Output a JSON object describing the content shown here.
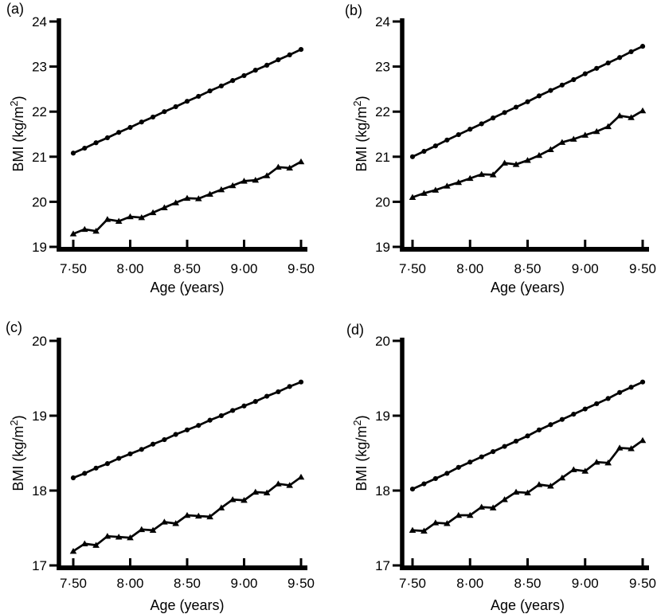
{
  "figure": {
    "x_axis_label": "Age (years)",
    "y_axis_label": "BMI (kg/m²)",
    "line_color": "#000000",
    "background_color": "#ffffff"
  },
  "chart_data": [
    {
      "type": "line",
      "panel_label": "(a)",
      "xlabel": "Age (years)",
      "ylabel": "BMI (kg/m²)",
      "xlim": [
        7.5,
        9.5
      ],
      "ylim": [
        19,
        24
      ],
      "yticks": [
        19,
        20,
        21,
        22,
        23,
        24
      ],
      "ytick_labels": [
        "19",
        "20",
        "21",
        "22",
        "23",
        "24"
      ],
      "xticks": [
        7.5,
        8.0,
        8.5,
        9.0,
        9.5
      ],
      "xtick_labels": [
        "7·50",
        "8·00",
        "8·50",
        "9·00",
        "9·50"
      ],
      "x": [
        7.5,
        7.6,
        7.7,
        7.8,
        7.9,
        8.0,
        8.1,
        8.2,
        8.3,
        8.4,
        8.5,
        8.6,
        8.7,
        8.8,
        8.9,
        9.0,
        9.1,
        9.2,
        9.3,
        9.4,
        9.5
      ],
      "series": [
        {
          "name": "upper-circles",
          "marker": "circle",
          "values": [
            21.08,
            21.19,
            21.31,
            21.42,
            21.54,
            21.65,
            21.77,
            21.88,
            22.0,
            22.11,
            22.23,
            22.34,
            22.46,
            22.57,
            22.69,
            22.8,
            22.92,
            23.03,
            23.15,
            23.26,
            23.38
          ]
        },
        {
          "name": "lower-triangles",
          "marker": "triangle",
          "values": [
            19.29,
            19.39,
            19.35,
            19.61,
            19.57,
            19.67,
            19.65,
            19.76,
            19.87,
            19.98,
            20.08,
            20.07,
            20.17,
            20.27,
            20.36,
            20.46,
            20.48,
            20.58,
            20.77,
            20.75,
            20.89
          ]
        }
      ]
    },
    {
      "type": "line",
      "panel_label": "(b)",
      "xlabel": "Age (years)",
      "ylabel": "BMI (kg/m²)",
      "xlim": [
        7.5,
        9.5
      ],
      "ylim": [
        19,
        24
      ],
      "yticks": [
        19,
        20,
        21,
        22,
        23,
        24
      ],
      "ytick_labels": [
        "19",
        "20",
        "21",
        "22",
        "23",
        "24"
      ],
      "xticks": [
        7.5,
        8.0,
        8.5,
        9.0,
        9.5
      ],
      "xtick_labels": [
        "7·50",
        "8·00",
        "8·50",
        "9·00",
        "9·50"
      ],
      "x": [
        7.5,
        7.6,
        7.7,
        7.8,
        7.9,
        8.0,
        8.1,
        8.2,
        8.3,
        8.4,
        8.5,
        8.6,
        8.7,
        8.8,
        8.9,
        9.0,
        9.1,
        9.2,
        9.3,
        9.4,
        9.5
      ],
      "series": [
        {
          "name": "upper-circles",
          "marker": "circle",
          "values": [
            21.0,
            21.12,
            21.24,
            21.37,
            21.49,
            21.61,
            21.73,
            21.86,
            21.98,
            22.1,
            22.22,
            22.35,
            22.47,
            22.59,
            22.71,
            22.84,
            22.96,
            23.08,
            23.2,
            23.33,
            23.45
          ]
        },
        {
          "name": "lower-triangles",
          "marker": "triangle",
          "values": [
            20.1,
            20.19,
            20.26,
            20.35,
            20.43,
            20.52,
            20.61,
            20.6,
            20.86,
            20.83,
            20.92,
            21.03,
            21.16,
            21.32,
            21.39,
            21.48,
            21.56,
            21.67,
            21.91,
            21.87,
            22.02
          ]
        }
      ]
    },
    {
      "type": "line",
      "panel_label": "(c)",
      "xlabel": "Age (years)",
      "ylabel": "BMI (kg/m²)",
      "xlim": [
        7.5,
        9.5
      ],
      "ylim": [
        17,
        20
      ],
      "yticks": [
        17,
        18,
        19,
        20
      ],
      "ytick_labels": [
        "17",
        "18",
        "19",
        "20"
      ],
      "xticks": [
        7.5,
        8.0,
        8.5,
        9.0,
        9.5
      ],
      "xtick_labels": [
        "7·50",
        "8·00",
        "8·50",
        "9·00",
        "9·50"
      ],
      "x": [
        7.5,
        7.6,
        7.7,
        7.8,
        7.9,
        8.0,
        8.1,
        8.2,
        8.3,
        8.4,
        8.5,
        8.6,
        8.7,
        8.8,
        8.9,
        9.0,
        9.1,
        9.2,
        9.3,
        9.4,
        9.5
      ],
      "series": [
        {
          "name": "upper-circles",
          "marker": "circle",
          "values": [
            18.17,
            18.23,
            18.3,
            18.36,
            18.43,
            18.49,
            18.55,
            18.62,
            18.68,
            18.75,
            18.81,
            18.87,
            18.94,
            19.0,
            19.07,
            19.13,
            19.19,
            19.26,
            19.32,
            19.39,
            19.45
          ]
        },
        {
          "name": "lower-triangles",
          "marker": "triangle",
          "values": [
            17.19,
            17.29,
            17.27,
            17.39,
            17.38,
            17.37,
            17.48,
            17.47,
            17.58,
            17.56,
            17.67,
            17.66,
            17.65,
            17.77,
            17.88,
            17.87,
            17.98,
            17.97,
            18.09,
            18.07,
            18.18
          ]
        }
      ]
    },
    {
      "type": "line",
      "panel_label": "(d)",
      "xlabel": "Age (years)",
      "ylabel": "BMI (kg/m²)",
      "xlim": [
        7.5,
        9.5
      ],
      "ylim": [
        17,
        20
      ],
      "yticks": [
        17,
        18,
        19,
        20
      ],
      "ytick_labels": [
        "17",
        "18",
        "19",
        "20"
      ],
      "xticks": [
        7.5,
        8.0,
        8.5,
        9.0,
        9.5
      ],
      "xtick_labels": [
        "7·50",
        "8·00",
        "8·50",
        "9·00",
        "9·50"
      ],
      "x": [
        7.5,
        7.6,
        7.7,
        7.8,
        7.9,
        8.0,
        8.1,
        8.2,
        8.3,
        8.4,
        8.5,
        8.6,
        8.7,
        8.8,
        8.9,
        9.0,
        9.1,
        9.2,
        9.3,
        9.4,
        9.5
      ],
      "series": [
        {
          "name": "upper-circles",
          "marker": "circle",
          "values": [
            18.02,
            18.09,
            18.16,
            18.23,
            18.31,
            18.38,
            18.45,
            18.52,
            18.59,
            18.66,
            18.73,
            18.81,
            18.88,
            18.95,
            19.02,
            19.09,
            19.16,
            19.23,
            19.31,
            19.38,
            19.45
          ]
        },
        {
          "name": "lower-triangles",
          "marker": "triangle",
          "values": [
            17.47,
            17.46,
            17.57,
            17.56,
            17.67,
            17.67,
            17.78,
            17.77,
            17.88,
            17.98,
            17.97,
            18.08,
            18.06,
            18.17,
            18.28,
            18.26,
            18.38,
            18.37,
            18.57,
            18.56,
            18.67
          ]
        }
      ]
    }
  ]
}
